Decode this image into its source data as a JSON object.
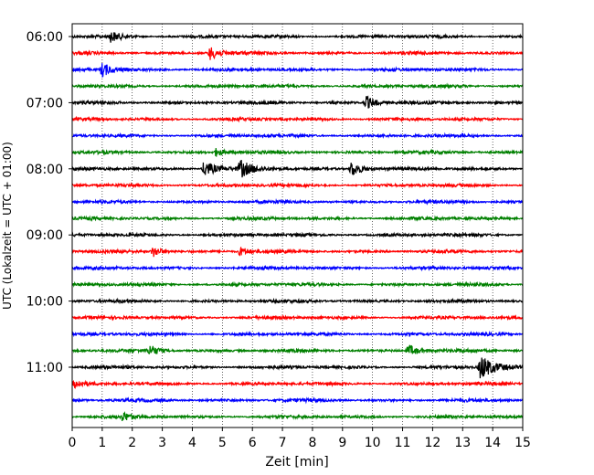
{
  "chart_data": {
    "type": "line",
    "title": "",
    "xlabel": "Zeit  [min]",
    "ylabel": "UTC (Lokalzeit = UTC + 01:00)",
    "xlim": [
      0,
      15
    ],
    "x_ticks": [
      "0",
      "1",
      "2",
      "3",
      "4",
      "5",
      "6",
      "7",
      "8",
      "9",
      "10",
      "11",
      "12",
      "13",
      "14",
      "15"
    ],
    "y_ticks": [
      "06:00",
      "07:00",
      "08:00",
      "09:00",
      "10:00",
      "11:00"
    ],
    "grid": "vertical dotted lines at each minute",
    "legend": "none",
    "row_colors": [
      "#000000",
      "#ff0000",
      "#0000ff",
      "#008000"
    ],
    "traces": [
      {
        "start_utc": "06:00",
        "color": "#000000",
        "events": [
          {
            "minute": 1.3,
            "amplitude": 0.4
          }
        ]
      },
      {
        "start_utc": "06:15",
        "color": "#ff0000",
        "events": [
          {
            "minute": 4.6,
            "amplitude": 0.5
          }
        ]
      },
      {
        "start_utc": "06:30",
        "color": "#0000ff",
        "events": [
          {
            "minute": 1.0,
            "amplitude": 0.55
          }
        ]
      },
      {
        "start_utc": "06:45",
        "color": "#008000",
        "events": []
      },
      {
        "start_utc": "07:00",
        "color": "#000000",
        "events": [
          {
            "minute": 9.8,
            "amplitude": 0.5
          }
        ]
      },
      {
        "start_utc": "07:15",
        "color": "#ff0000",
        "events": []
      },
      {
        "start_utc": "07:30",
        "color": "#0000ff",
        "events": []
      },
      {
        "start_utc": "07:45",
        "color": "#008000",
        "events": [
          {
            "minute": 4.8,
            "amplitude": 0.3
          }
        ]
      },
      {
        "start_utc": "08:00",
        "color": "#000000",
        "events": [
          {
            "minute": 4.4,
            "amplitude": 0.65
          },
          {
            "minute": 5.6,
            "amplitude": 0.65
          },
          {
            "minute": 9.3,
            "amplitude": 0.6
          }
        ]
      },
      {
        "start_utc": "08:15",
        "color": "#ff0000",
        "events": []
      },
      {
        "start_utc": "08:30",
        "color": "#0000ff",
        "events": []
      },
      {
        "start_utc": "08:45",
        "color": "#008000",
        "events": []
      },
      {
        "start_utc": "09:00",
        "color": "#000000",
        "events": []
      },
      {
        "start_utc": "09:15",
        "color": "#ff0000",
        "events": [
          {
            "minute": 2.7,
            "amplitude": 0.4
          },
          {
            "minute": 5.6,
            "amplitude": 0.35
          }
        ]
      },
      {
        "start_utc": "09:30",
        "color": "#0000ff",
        "events": []
      },
      {
        "start_utc": "09:45",
        "color": "#008000",
        "events": []
      },
      {
        "start_utc": "10:00",
        "color": "#000000",
        "events": []
      },
      {
        "start_utc": "10:15",
        "color": "#ff0000",
        "events": []
      },
      {
        "start_utc": "10:30",
        "color": "#0000ff",
        "events": []
      },
      {
        "start_utc": "10:45",
        "color": "#008000",
        "events": [
          {
            "minute": 2.6,
            "amplitude": 0.4
          },
          {
            "minute": 11.2,
            "amplitude": 0.45
          }
        ]
      },
      {
        "start_utc": "11:00",
        "color": "#000000",
        "events": [
          {
            "minute": 13.6,
            "amplitude": 0.95
          }
        ]
      },
      {
        "start_utc": "11:15",
        "color": "#ff0000",
        "events": [
          {
            "minute": 0.1,
            "amplitude": 0.3
          }
        ]
      },
      {
        "start_utc": "11:30",
        "color": "#0000ff",
        "events": []
      },
      {
        "start_utc": "11:45",
        "color": "#008000",
        "events": [
          {
            "minute": 1.7,
            "amplitude": 0.3
          }
        ]
      }
    ]
  }
}
